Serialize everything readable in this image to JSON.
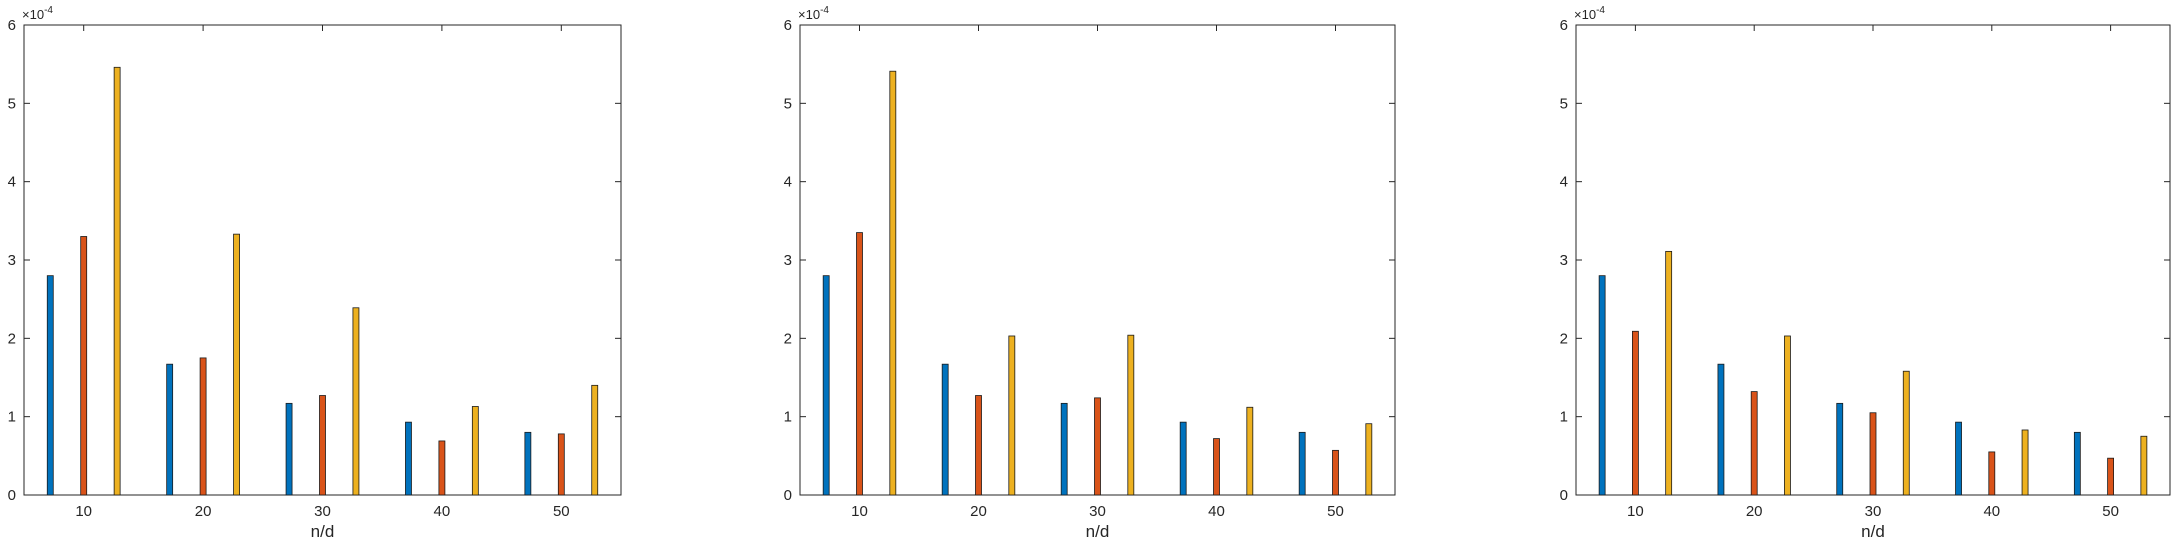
{
  "chart_data": [
    {
      "type": "bar",
      "categories": [
        "10",
        "20",
        "30",
        "40",
        "50"
      ],
      "series": [
        {
          "color": "#0072BD",
          "values": [
            2.8,
            1.67,
            1.17,
            0.93,
            0.8
          ]
        },
        {
          "color": "#D95319",
          "values": [
            3.3,
            1.75,
            1.27,
            0.69,
            0.78
          ]
        },
        {
          "color": "#EDB120",
          "values": [
            5.46,
            3.33,
            2.39,
            1.13,
            1.4
          ]
        }
      ],
      "title": "",
      "xlabel": "n/d",
      "ylabel": "",
      "ylim": [
        0,
        6
      ],
      "yticks": [
        "0",
        "1",
        "2",
        "3",
        "4",
        "5",
        "6"
      ],
      "y_exponent": "×10^-4",
      "y_exponent_base": "×10",
      "y_exponent_power": "-4",
      "grid": false
    },
    {
      "type": "bar",
      "categories": [
        "10",
        "20",
        "30",
        "40",
        "50"
      ],
      "series": [
        {
          "color": "#0072BD",
          "values": [
            2.8,
            1.67,
            1.17,
            0.93,
            0.8
          ]
        },
        {
          "color": "#D95319",
          "values": [
            3.35,
            1.27,
            1.24,
            0.72,
            0.57
          ]
        },
        {
          "color": "#EDB120",
          "values": [
            5.41,
            2.03,
            2.04,
            1.12,
            0.91
          ]
        }
      ],
      "title": "",
      "xlabel": "n/d",
      "ylabel": "",
      "ylim": [
        0,
        6
      ],
      "yticks": [
        "0",
        "1",
        "2",
        "3",
        "4",
        "5",
        "6"
      ],
      "y_exponent": "×10^-4",
      "y_exponent_base": "×10",
      "y_exponent_power": "-4",
      "grid": false
    },
    {
      "type": "bar",
      "categories": [
        "10",
        "20",
        "30",
        "40",
        "50"
      ],
      "series": [
        {
          "color": "#0072BD",
          "values": [
            2.8,
            1.67,
            1.17,
            0.93,
            0.8
          ]
        },
        {
          "color": "#D95319",
          "values": [
            2.09,
            1.32,
            1.05,
            0.55,
            0.47
          ]
        },
        {
          "color": "#EDB120",
          "values": [
            3.11,
            2.03,
            1.58,
            0.83,
            0.75
          ]
        }
      ],
      "title": "",
      "xlabel": "n/d",
      "ylabel": "",
      "ylim": [
        0,
        6
      ],
      "yticks": [
        "0",
        "1",
        "2",
        "3",
        "4",
        "5",
        "6"
      ],
      "y_exponent": "×10^-4",
      "y_exponent_base": "×10",
      "y_exponent_power": "-4",
      "grid": false
    }
  ]
}
